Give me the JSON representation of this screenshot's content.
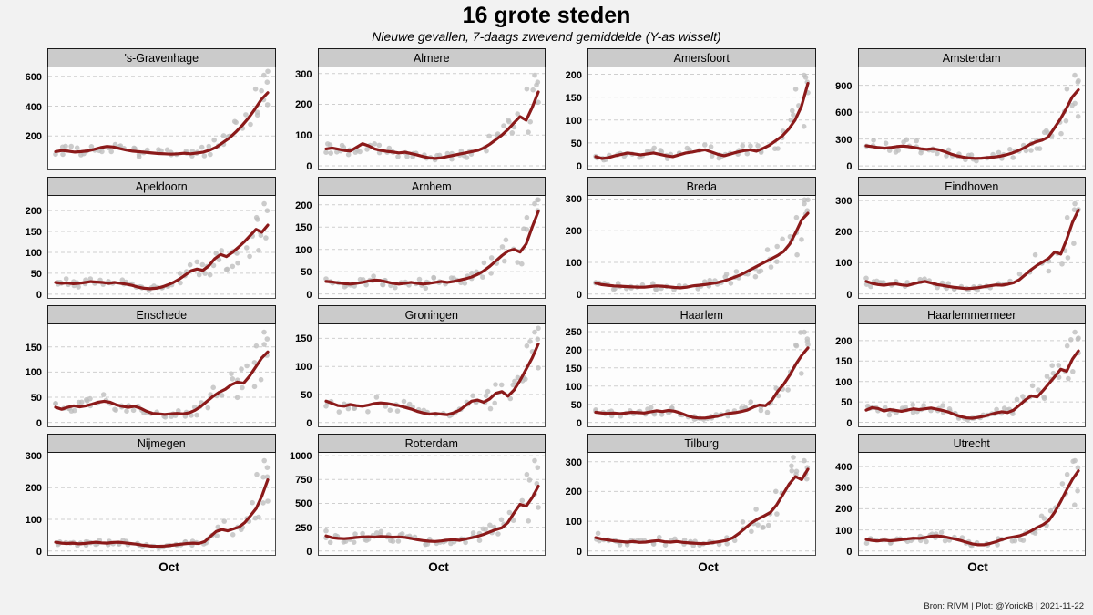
{
  "title": "16 grote steden",
  "subtitle": "Nieuwe gevallen, 7-daags zwevend gemiddelde (Y-as wisselt)",
  "x_tick_label": "Oct",
  "footer": "Bron: RIVM | Plot: @YorickB |  2021-11-22",
  "colors": {
    "line": "#8B1A1A",
    "points": "#BEBEBE",
    "strip_bg": "#CBCBCB",
    "panel_bg": "#FDFDFD",
    "grid": "#CFCFCF",
    "page_bg": "#F2F2F2",
    "border": "#1A1A1A"
  },
  "chart_data": {
    "type": "line",
    "title": "16 grote steden",
    "subtitle": "Nieuwe gevallen, 7-daags zwevend gemiddelde (Y-as wisselt)",
    "layout": {
      "rows": 4,
      "cols": 4,
      "free_y": true,
      "grid": "dashed-horizontal",
      "x_tick_labels": [
        "Oct"
      ]
    },
    "series_style": {
      "line": "7-day moving average",
      "points": "daily raw values"
    },
    "facets": [
      {
        "name": "'s-Gravenhage",
        "yticks": [
          200,
          400,
          600
        ],
        "ylim": [
          -25,
          660
        ],
        "values": [
          95,
          102,
          98,
          92,
          95,
          100,
          110,
          122,
          130,
          126,
          115,
          105,
          98,
          94,
          90,
          86,
          82,
          80,
          78,
          80,
          84,
          80,
          86,
          92,
          105,
          125,
          155,
          185,
          225,
          270,
          320,
          380,
          445,
          490
        ]
      },
      {
        "name": "Almere",
        "yticks": [
          0,
          100,
          200,
          300
        ],
        "ylim": [
          -12,
          320
        ],
        "values": [
          55,
          58,
          54,
          50,
          48,
          60,
          72,
          65,
          55,
          50,
          47,
          45,
          42,
          44,
          40,
          35,
          30,
          26,
          24,
          26,
          30,
          34,
          38,
          42,
          46,
          50,
          58,
          70,
          85,
          100,
          118,
          140,
          160,
          148,
          190,
          240
        ]
      },
      {
        "name": "Amersfoort",
        "yticks": [
          0,
          50,
          100,
          150,
          200
        ],
        "ylim": [
          -8,
          215
        ],
        "values": [
          20,
          16,
          18,
          22,
          25,
          28,
          26,
          24,
          26,
          28,
          25,
          22,
          20,
          24,
          28,
          30,
          33,
          35,
          30,
          25,
          22,
          26,
          30,
          33,
          35,
          32,
          38,
          45,
          55,
          65,
          80,
          100,
          130,
          180
        ]
      },
      {
        "name": "Amsterdam",
        "yticks": [
          0,
          300,
          600,
          900
        ],
        "ylim": [
          -40,
          1100
        ],
        "values": [
          225,
          215,
          205,
          198,
          205,
          215,
          222,
          215,
          205,
          192,
          185,
          192,
          180,
          158,
          132,
          112,
          98,
          88,
          84,
          86,
          92,
          98,
          108,
          122,
          142,
          168,
          200,
          240,
          268,
          288,
          320,
          420,
          520,
          640,
          770,
          850
        ]
      },
      {
        "name": "Apeldoorn",
        "yticks": [
          0,
          50,
          100,
          150,
          200
        ],
        "ylim": [
          -9,
          235
        ],
        "values": [
          28,
          26,
          27,
          25,
          26,
          28,
          30,
          29,
          28,
          26,
          28,
          26,
          24,
          21,
          17,
          14,
          13,
          14,
          17,
          22,
          28,
          36,
          46,
          56,
          60,
          57,
          68,
          85,
          95,
          90,
          100,
          112,
          125,
          140,
          155,
          148,
          165
        ]
      },
      {
        "name": "Arnhem",
        "yticks": [
          0,
          50,
          100,
          150,
          200
        ],
        "ylim": [
          -9,
          220
        ],
        "values": [
          28,
          27,
          25,
          23,
          22,
          24,
          26,
          29,
          31,
          30,
          27,
          24,
          22,
          24,
          26,
          24,
          22,
          24,
          26,
          28,
          26,
          28,
          31,
          34,
          38,
          44,
          52,
          62,
          74,
          86,
          96,
          100,
          94,
          112,
          150,
          185
        ]
      },
      {
        "name": "Breda",
        "yticks": [
          0,
          100,
          200,
          300
        ],
        "ylim": [
          -12,
          310
        ],
        "values": [
          35,
          30,
          28,
          26,
          25,
          24,
          23,
          22,
          22,
          24,
          26,
          25,
          23,
          21,
          20,
          22,
          26,
          28,
          30,
          33,
          36,
          41,
          47,
          54,
          62,
          72,
          82,
          92,
          102,
          112,
          122,
          135,
          158,
          195,
          235,
          255
        ]
      },
      {
        "name": "Eindhoven",
        "yticks": [
          0,
          100,
          200,
          300
        ],
        "ylim": [
          -13,
          315
        ],
        "values": [
          40,
          34,
          30,
          28,
          31,
          32,
          29,
          27,
          32,
          37,
          40,
          35,
          30,
          27,
          24,
          21,
          19,
          17,
          18,
          20,
          23,
          26,
          29,
          28,
          31,
          36,
          46,
          62,
          78,
          92,
          103,
          115,
          135,
          128,
          175,
          230,
          270
        ]
      },
      {
        "name": "Enschede",
        "yticks": [
          0,
          50,
          100,
          150
        ],
        "ylim": [
          -8,
          195
        ],
        "values": [
          30,
          26,
          30,
          33,
          31,
          33,
          36,
          40,
          42,
          40,
          35,
          32,
          30,
          32,
          28,
          22,
          18,
          17,
          16,
          17,
          18,
          17,
          19,
          24,
          32,
          42,
          52,
          60,
          66,
          75,
          80,
          78,
          92,
          110,
          128,
          140
        ]
      },
      {
        "name": "Groningen",
        "yticks": [
          0,
          50,
          100,
          150
        ],
        "ylim": [
          -7,
          175
        ],
        "values": [
          38,
          34,
          30,
          29,
          32,
          30,
          29,
          31,
          34,
          35,
          34,
          32,
          30,
          27,
          24,
          20,
          17,
          15,
          16,
          15,
          14,
          17,
          22,
          30,
          38,
          40,
          36,
          42,
          52,
          55,
          47,
          58,
          75,
          95,
          115,
          140
        ]
      },
      {
        "name": "Haarlem",
        "yticks": [
          0,
          50,
          100,
          150,
          200,
          250
        ],
        "ylim": [
          -11,
          270
        ],
        "values": [
          28,
          26,
          25,
          26,
          24,
          26,
          28,
          27,
          26,
          29,
          32,
          30,
          33,
          31,
          26,
          19,
          14,
          12,
          12,
          14,
          17,
          21,
          25,
          27,
          30,
          34,
          42,
          48,
          46,
          60,
          85,
          105,
          130,
          160,
          185,
          205
        ]
      },
      {
        "name": "Haarlemmermeer",
        "yticks": [
          0,
          50,
          100,
          150,
          200
        ],
        "ylim": [
          -10,
          240
        ],
        "values": [
          30,
          36,
          34,
          28,
          31,
          29,
          27,
          30,
          33,
          31,
          33,
          35,
          32,
          29,
          25,
          19,
          14,
          11,
          10,
          12,
          15,
          19,
          23,
          26,
          24,
          30,
          42,
          55,
          65,
          62,
          78,
          95,
          112,
          130,
          125,
          155,
          175
        ]
      },
      {
        "name": "Nijmegen",
        "yticks": [
          0,
          100,
          200,
          300
        ],
        "ylim": [
          -12,
          310
        ],
        "values": [
          28,
          25,
          24,
          25,
          23,
          24,
          26,
          28,
          26,
          25,
          27,
          28,
          26,
          24,
          22,
          19,
          17,
          15,
          15,
          16,
          18,
          20,
          22,
          24,
          25,
          24,
          30,
          46,
          62,
          68,
          64,
          70,
          76,
          90,
          112,
          135,
          175,
          225
        ]
      },
      {
        "name": "Rotterdam",
        "yticks": [
          0,
          250,
          500,
          750,
          1000
        ],
        "ylim": [
          -40,
          1030
        ],
        "values": [
          160,
          140,
          133,
          130,
          136,
          142,
          148,
          150,
          146,
          152,
          150,
          145,
          148,
          143,
          133,
          120,
          110,
          103,
          100,
          106,
          115,
          120,
          113,
          126,
          140,
          155,
          175,
          200,
          225,
          245,
          300,
          400,
          490,
          470,
          560,
          680
        ]
      },
      {
        "name": "Tilburg",
        "yticks": [
          0,
          100,
          200,
          300
        ],
        "ylim": [
          -13,
          330
        ],
        "values": [
          45,
          40,
          37,
          34,
          32,
          30,
          32,
          29,
          30,
          33,
          35,
          31,
          30,
          32,
          29,
          27,
          26,
          25,
          26,
          29,
          32,
          36,
          45,
          60,
          78,
          95,
          108,
          118,
          130,
          155,
          190,
          225,
          250,
          240,
          275
        ]
      },
      {
        "name": "Utrecht",
        "yticks": [
          0,
          100,
          200,
          300,
          400
        ],
        "ylim": [
          -18,
          465
        ],
        "values": [
          55,
          50,
          48,
          52,
          49,
          51,
          54,
          58,
          61,
          60,
          64,
          70,
          72,
          69,
          63,
          57,
          50,
          42,
          34,
          30,
          30,
          36,
          44,
          54,
          62,
          67,
          72,
          82,
          96,
          112,
          125,
          145,
          185,
          235,
          290,
          340,
          380
        ]
      }
    ]
  }
}
